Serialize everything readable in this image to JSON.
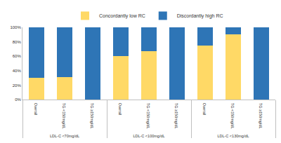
{
  "chart_data": {
    "type": "bar",
    "stacked": true,
    "grid": false,
    "legend": "top",
    "category_groups": [
      "LDL-C <70mg/dL",
      "LDL-C <70mg/dL",
      "LDL-C <70mg/dL",
      "LDL-C <100mg/dL",
      "LDL-C <100mg/dL",
      "LDL-C <100mg/dL",
      "LDL-C <130mg/dL",
      "LDL-C <130mg/dL",
      "LDL-C <130mg/dL"
    ],
    "categories": [
      "Overall",
      "TG <150mg/dL",
      "TG ≥150mg/dL",
      "Overall",
      "TG <150mg/dL",
      "TG ≥150mg/dL",
      "Overall",
      "TG <150mg/dL",
      "TG ≥150mg/dL"
    ],
    "series": [
      {
        "name": "Concordantly low RC",
        "color": "#FFD966",
        "values": [
          30,
          31,
          0,
          60,
          67,
          0,
          75,
          90,
          0
        ]
      },
      {
        "name": "Discordantly high RC",
        "color": "#2E75B6",
        "values": [
          70,
          69,
          100,
          40,
          33,
          100,
          25,
          10,
          100
        ]
      }
    ],
    "ylim": [
      0,
      100
    ],
    "yticks": [
      {
        "value": 0,
        "label": "0%"
      },
      {
        "value": 20,
        "label": "20%"
      },
      {
        "value": 40,
        "label": "40%"
      },
      {
        "value": 60,
        "label": "60%"
      },
      {
        "value": 80,
        "label": "80%"
      },
      {
        "value": 100,
        "label": "100%"
      }
    ]
  }
}
